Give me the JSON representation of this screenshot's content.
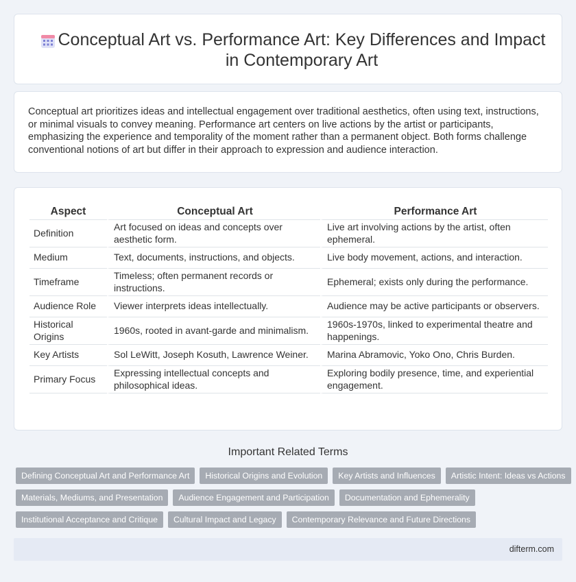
{
  "header": {
    "title": "Conceptual Art vs. Performance Art: Key Differences and Impact in Contemporary Art",
    "icon": "calendar-grid-icon",
    "icon_color": "#7b7fd4"
  },
  "intro": {
    "text": "Conceptual art prioritizes ideas and intellectual engagement over traditional aesthetics, often using text, instructions, or minimal visuals to convey meaning. Performance art centers on live actions by the artist or participants, emphasizing the experience and temporality of the moment rather than a permanent object. Both forms challenge conventional notions of art but differ in their approach to expression and audience interaction."
  },
  "table": {
    "headers": [
      "Aspect",
      "Conceptual Art",
      "Performance Art"
    ],
    "rows": [
      [
        "Definition",
        "Art focused on ideas and concepts over aesthetic form.",
        "Live art involving actions by the artist, often ephemeral."
      ],
      [
        "Medium",
        "Text, documents, instructions, and objects.",
        "Live body movement, actions, and interaction."
      ],
      [
        "Timeframe",
        "Timeless; often permanent records or instructions.",
        "Ephemeral; exists only during the performance."
      ],
      [
        "Audience Role",
        "Viewer interprets ideas intellectually.",
        "Audience may be active participants or observers."
      ],
      [
        "Historical Origins",
        "1960s, rooted in avant-garde and minimalism.",
        "1960s-1970s, linked to experimental theatre and happenings."
      ],
      [
        "Key Artists",
        "Sol LeWitt, Joseph Kosuth, Lawrence Weiner.",
        "Marina Abramovic, Yoko Ono, Chris Burden."
      ],
      [
        "Primary Focus",
        "Expressing intellectual concepts and philosophical ideas.",
        "Exploring bodily presence, time, and experiential engagement."
      ]
    ]
  },
  "related": {
    "title": "Important Related Terms",
    "tags": [
      [
        "Defining Conceptual Art and Performance Art",
        "Historical Origins and Evolution",
        "Key Artists and Influences",
        "Artistic Intent: Ideas vs Actions"
      ],
      [
        "Materials, Mediums, and Presentation",
        "Audience Engagement and Participation",
        "Documentation and Ephemerality"
      ],
      [
        "Institutional Acceptance and Critique",
        "Cultural Impact and Legacy",
        "Contemporary Relevance and Future Directions"
      ]
    ]
  },
  "footer": {
    "site": "difterm.com"
  }
}
